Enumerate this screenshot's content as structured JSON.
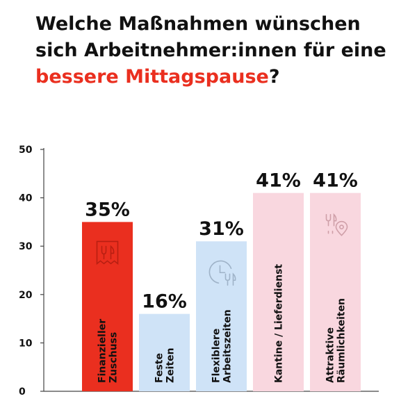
{
  "title": {
    "line1": "Welche Maßnahmen wünschen",
    "line2": "sich Arbeitnehmer:innen für eine",
    "line3_highlight": "bessere Mittagspause",
    "line3_tail": "?"
  },
  "colors": {
    "accent": "#ea2f1f",
    "light_blue": "#cfe3f7",
    "light_pink": "#f9d7df",
    "text": "#111111",
    "icon_blue": "#9fb3c8",
    "icon_pink": "#cf9fa8",
    "icon_red": "#b81f12"
  },
  "chart_data": {
    "type": "bar",
    "title": "Welche Maßnahmen wünschen sich Arbeitnehmer:innen für eine bessere Mittagspause?",
    "ylim": [
      0,
      50
    ],
    "yticks": [
      0,
      10,
      20,
      30,
      40,
      50
    ],
    "unit": "%",
    "bars": [
      {
        "label_lines": [
          "Finanzieller",
          "Zuschuss"
        ],
        "value": 35,
        "data_label": "35%",
        "color": "#ea2f1f",
        "label_color": "#111111",
        "icon": "receipt-cutlery-icon"
      },
      {
        "label_lines": [
          "Feste",
          "Zeiten"
        ],
        "value": 16,
        "data_label": "16%",
        "color": "#cfe3f7",
        "label_color": "#111111",
        "icon": ""
      },
      {
        "label_lines": [
          "Flexiblere",
          "Arbeitszeiten"
        ],
        "value": 31,
        "data_label": "31%",
        "color": "#cfe3f7",
        "label_color": "#111111",
        "icon": "clock-cutlery-icon"
      },
      {
        "label_lines": [
          "Kantine / Lieferdienst"
        ],
        "value": 41,
        "data_label": "41%",
        "color": "#f9d7df",
        "label_color": "#111111",
        "icon": ""
      },
      {
        "label_lines": [
          "Attraktive",
          "Räumlichkeiten"
        ],
        "value": 41,
        "data_label": "41%",
        "color": "#f9d7df",
        "label_color": "#111111",
        "icon": "cutlery-location-icon"
      }
    ]
  }
}
